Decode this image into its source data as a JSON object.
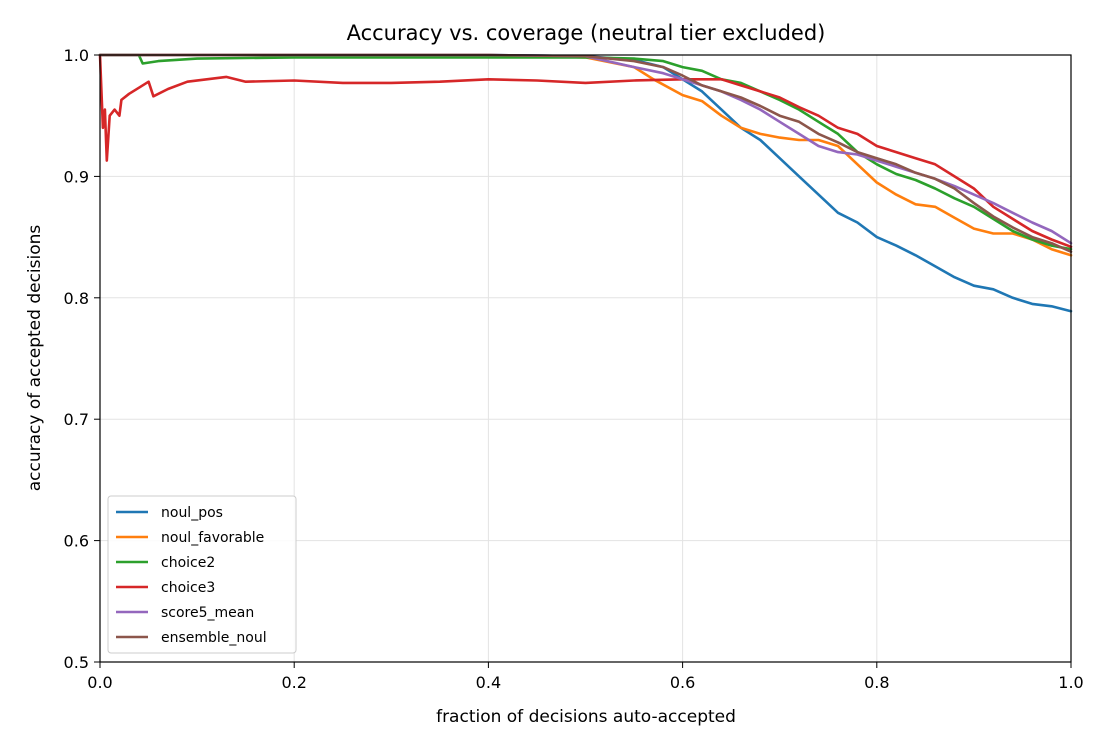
{
  "chart_data": {
    "type": "line",
    "title": "Accuracy vs. coverage (neutral tier excluded)",
    "xlabel": "fraction of decisions auto-accepted",
    "ylabel": "accuracy of accepted decisions",
    "xlim": [
      0.0,
      1.0
    ],
    "ylim": [
      0.5,
      1.0
    ],
    "xticks": [
      "0.0",
      "0.2",
      "0.4",
      "0.6",
      "0.8",
      "1.0"
    ],
    "yticks": [
      "0.5",
      "0.6",
      "0.7",
      "0.8",
      "0.9",
      "1.0"
    ],
    "grid": true,
    "legend_position": "lower-left",
    "series": [
      {
        "name": "noul_pos",
        "color": "#1f77b4",
        "points": [
          [
            0.0,
            1.0
          ],
          [
            0.1,
            1.0
          ],
          [
            0.2,
            1.0
          ],
          [
            0.3,
            1.0
          ],
          [
            0.4,
            1.0
          ],
          [
            0.5,
            0.999
          ],
          [
            0.55,
            0.996
          ],
          [
            0.58,
            0.99
          ],
          [
            0.6,
            0.98
          ],
          [
            0.62,
            0.97
          ],
          [
            0.64,
            0.955
          ],
          [
            0.66,
            0.94
          ],
          [
            0.68,
            0.93
          ],
          [
            0.7,
            0.915
          ],
          [
            0.72,
            0.9
          ],
          [
            0.74,
            0.885
          ],
          [
            0.76,
            0.87
          ],
          [
            0.78,
            0.862
          ],
          [
            0.8,
            0.85
          ],
          [
            0.82,
            0.843
          ],
          [
            0.84,
            0.835
          ],
          [
            0.86,
            0.826
          ],
          [
            0.88,
            0.817
          ],
          [
            0.9,
            0.81
          ],
          [
            0.92,
            0.807
          ],
          [
            0.94,
            0.8
          ],
          [
            0.96,
            0.795
          ],
          [
            0.98,
            0.793
          ],
          [
            1.0,
            0.789
          ]
        ]
      },
      {
        "name": "noul_favorable",
        "color": "#ff7f0e",
        "points": [
          [
            0.0,
            1.0
          ],
          [
            0.1,
            1.0
          ],
          [
            0.2,
            1.0
          ],
          [
            0.3,
            1.0
          ],
          [
            0.4,
            1.0
          ],
          [
            0.5,
            0.998
          ],
          [
            0.55,
            0.99
          ],
          [
            0.57,
            0.98
          ],
          [
            0.6,
            0.967
          ],
          [
            0.62,
            0.962
          ],
          [
            0.64,
            0.95
          ],
          [
            0.66,
            0.94
          ],
          [
            0.68,
            0.935
          ],
          [
            0.7,
            0.932
          ],
          [
            0.72,
            0.93
          ],
          [
            0.74,
            0.93
          ],
          [
            0.76,
            0.925
          ],
          [
            0.78,
            0.91
          ],
          [
            0.8,
            0.895
          ],
          [
            0.82,
            0.885
          ],
          [
            0.84,
            0.877
          ],
          [
            0.86,
            0.875
          ],
          [
            0.88,
            0.866
          ],
          [
            0.9,
            0.857
          ],
          [
            0.92,
            0.853
          ],
          [
            0.94,
            0.853
          ],
          [
            0.96,
            0.848
          ],
          [
            0.98,
            0.84
          ],
          [
            1.0,
            0.835
          ]
        ]
      },
      {
        "name": "choice2",
        "color": "#2ca02c",
        "points": [
          [
            0.0,
            1.0
          ],
          [
            0.04,
            1.0
          ],
          [
            0.044,
            0.993
          ],
          [
            0.06,
            0.995
          ],
          [
            0.1,
            0.997
          ],
          [
            0.2,
            0.998
          ],
          [
            0.3,
            0.998
          ],
          [
            0.4,
            0.998
          ],
          [
            0.5,
            0.998
          ],
          [
            0.55,
            0.997
          ],
          [
            0.58,
            0.995
          ],
          [
            0.6,
            0.99
          ],
          [
            0.62,
            0.987
          ],
          [
            0.64,
            0.98
          ],
          [
            0.66,
            0.977
          ],
          [
            0.68,
            0.97
          ],
          [
            0.7,
            0.963
          ],
          [
            0.72,
            0.955
          ],
          [
            0.74,
            0.945
          ],
          [
            0.76,
            0.935
          ],
          [
            0.78,
            0.92
          ],
          [
            0.8,
            0.91
          ],
          [
            0.82,
            0.902
          ],
          [
            0.84,
            0.897
          ],
          [
            0.86,
            0.89
          ],
          [
            0.88,
            0.882
          ],
          [
            0.9,
            0.875
          ],
          [
            0.92,
            0.865
          ],
          [
            0.94,
            0.855
          ],
          [
            0.96,
            0.848
          ],
          [
            0.98,
            0.843
          ],
          [
            1.0,
            0.84
          ]
        ]
      },
      {
        "name": "choice3",
        "color": "#d62728",
        "points": [
          [
            0.0,
            1.0
          ],
          [
            0.003,
            0.94
          ],
          [
            0.005,
            0.955
          ],
          [
            0.007,
            0.913
          ],
          [
            0.01,
            0.95
          ],
          [
            0.015,
            0.955
          ],
          [
            0.02,
            0.95
          ],
          [
            0.022,
            0.963
          ],
          [
            0.03,
            0.968
          ],
          [
            0.04,
            0.973
          ],
          [
            0.05,
            0.978
          ],
          [
            0.055,
            0.966
          ],
          [
            0.07,
            0.972
          ],
          [
            0.09,
            0.978
          ],
          [
            0.11,
            0.98
          ],
          [
            0.13,
            0.982
          ],
          [
            0.15,
            0.978
          ],
          [
            0.2,
            0.979
          ],
          [
            0.25,
            0.977
          ],
          [
            0.3,
            0.977
          ],
          [
            0.35,
            0.978
          ],
          [
            0.4,
            0.98
          ],
          [
            0.45,
            0.979
          ],
          [
            0.5,
            0.977
          ],
          [
            0.55,
            0.979
          ],
          [
            0.6,
            0.98
          ],
          [
            0.62,
            0.98
          ],
          [
            0.64,
            0.98
          ],
          [
            0.66,
            0.975
          ],
          [
            0.68,
            0.97
          ],
          [
            0.7,
            0.965
          ],
          [
            0.72,
            0.957
          ],
          [
            0.74,
            0.95
          ],
          [
            0.76,
            0.94
          ],
          [
            0.78,
            0.935
          ],
          [
            0.8,
            0.925
          ],
          [
            0.82,
            0.92
          ],
          [
            0.84,
            0.915
          ],
          [
            0.86,
            0.91
          ],
          [
            0.88,
            0.9
          ],
          [
            0.9,
            0.89
          ],
          [
            0.92,
            0.875
          ],
          [
            0.94,
            0.865
          ],
          [
            0.96,
            0.855
          ],
          [
            0.98,
            0.848
          ],
          [
            1.0,
            0.842
          ]
        ]
      },
      {
        "name": "score5_mean",
        "color": "#9467bd",
        "points": [
          [
            0.0,
            1.0
          ],
          [
            0.1,
            1.0
          ],
          [
            0.2,
            1.0
          ],
          [
            0.3,
            1.0
          ],
          [
            0.4,
            1.0
          ],
          [
            0.5,
            0.999
          ],
          [
            0.55,
            0.99
          ],
          [
            0.58,
            0.985
          ],
          [
            0.6,
            0.98
          ],
          [
            0.62,
            0.975
          ],
          [
            0.64,
            0.97
          ],
          [
            0.66,
            0.963
          ],
          [
            0.68,
            0.955
          ],
          [
            0.7,
            0.945
          ],
          [
            0.72,
            0.935
          ],
          [
            0.74,
            0.925
          ],
          [
            0.76,
            0.92
          ],
          [
            0.78,
            0.918
          ],
          [
            0.8,
            0.913
          ],
          [
            0.82,
            0.908
          ],
          [
            0.84,
            0.903
          ],
          [
            0.86,
            0.898
          ],
          [
            0.88,
            0.892
          ],
          [
            0.9,
            0.885
          ],
          [
            0.92,
            0.878
          ],
          [
            0.94,
            0.87
          ],
          [
            0.96,
            0.862
          ],
          [
            0.98,
            0.855
          ],
          [
            1.0,
            0.845
          ]
        ]
      },
      {
        "name": "ensemble_noul",
        "color": "#8c564b",
        "points": [
          [
            0.0,
            1.0
          ],
          [
            0.1,
            1.0
          ],
          [
            0.2,
            1.0
          ],
          [
            0.3,
            1.0
          ],
          [
            0.4,
            1.0
          ],
          [
            0.5,
            0.999
          ],
          [
            0.55,
            0.995
          ],
          [
            0.58,
            0.99
          ],
          [
            0.6,
            0.983
          ],
          [
            0.62,
            0.975
          ],
          [
            0.64,
            0.97
          ],
          [
            0.66,
            0.965
          ],
          [
            0.68,
            0.958
          ],
          [
            0.7,
            0.95
          ],
          [
            0.72,
            0.945
          ],
          [
            0.74,
            0.935
          ],
          [
            0.76,
            0.928
          ],
          [
            0.78,
            0.92
          ],
          [
            0.8,
            0.915
          ],
          [
            0.82,
            0.91
          ],
          [
            0.84,
            0.903
          ],
          [
            0.86,
            0.898
          ],
          [
            0.88,
            0.89
          ],
          [
            0.9,
            0.878
          ],
          [
            0.92,
            0.867
          ],
          [
            0.94,
            0.858
          ],
          [
            0.96,
            0.85
          ],
          [
            0.98,
            0.845
          ],
          [
            1.0,
            0.838
          ]
        ]
      }
    ]
  }
}
